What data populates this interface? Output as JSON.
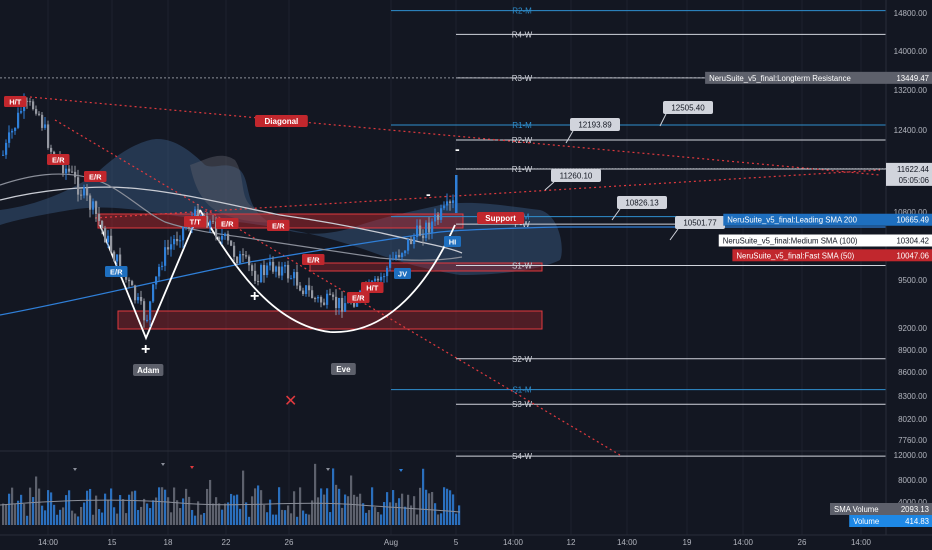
{
  "chart_data": {
    "type": "candlestick",
    "y_ticks": [
      "14800.00",
      "14000.00",
      "13200.00",
      "12400.00",
      "11600.00",
      "10800.00",
      "10000.00",
      "9500.00",
      "9200.00",
      "8900.00",
      "8600.00",
      "8300.00",
      "8020.00",
      "7760.00"
    ],
    "x_ticks": [
      "14:00",
      "15",
      "18",
      "22",
      "26",
      "Aug",
      "5",
      "14:00",
      "12",
      "14:00",
      "19",
      "14:00",
      "26",
      "14:00"
    ],
    "vol_ticks": [
      "12000.00",
      "8000.00",
      "4000.00"
    ],
    "pivots": [
      {
        "label": "R2-M",
        "price": 14850,
        "color": "#2f8fcf"
      },
      {
        "label": "R4-W",
        "price": 14350,
        "color": "#d1d4dc"
      },
      {
        "label": "R3-W",
        "price": 13450,
        "color": "#d1d4dc"
      },
      {
        "label": "R1-M",
        "price": 12500,
        "color": "#2f8fcf"
      },
      {
        "label": "R2-W",
        "price": 12200,
        "color": "#d1d4dc"
      },
      {
        "label": "R1-W",
        "price": 11620,
        "color": "#d1d4dc"
      },
      {
        "label": "P-M",
        "price": 10720,
        "color": "#2f8fcf"
      },
      {
        "label": "P-W",
        "price": 10590,
        "color": "#d1d4dc"
      },
      {
        "label": "S1-W",
        "price": 9830,
        "color": "#d1d4dc"
      },
      {
        "label": "S2-W",
        "price": 8780,
        "color": "#d1d4dc"
      },
      {
        "label": "S1-M",
        "price": 8380,
        "color": "#2f8fcf"
      },
      {
        "label": "S3-W",
        "price": 8200,
        "color": "#d1d4dc"
      },
      {
        "label": "S4-W",
        "price": 7560,
        "color": "#d1d4dc"
      }
    ],
    "callouts": [
      "12505.40",
      "12193.89",
      "11260.10",
      "10826.13",
      "10501.77"
    ],
    "right_labels": [
      {
        "text": "NeruSuite_v5_final:Longterm Resistance",
        "value": "13449.47",
        "bg": "#5d606b",
        "fg": "#ffffff",
        "price": 13449.47
      },
      {
        "text": "NeruSuite_v5_final:Leading SMA 200",
        "value": "10665.49",
        "bg": "#1e6fbf",
        "fg": "#ffffff",
        "price": 10665.49
      },
      {
        "text": "NeruSuite_v5_final:Medium SMA (100)",
        "value": "10304.42",
        "bg": "#ffffff",
        "fg": "#131722",
        "price": 10304.42
      },
      {
        "text": "NeruSuite_v5_final:Fast SMA (50)",
        "value": "10047.06",
        "bg": "#c1272d",
        "fg": "#ffffff",
        "price": 10047.06
      }
    ],
    "last_price": {
      "value": "11622.44",
      "countdown": "05:05:06",
      "price": 11622.44
    },
    "volume_labels": [
      {
        "text": "SMA Volume",
        "value": "2093.13",
        "bg": "#5d606b"
      },
      {
        "text": "Volume",
        "value": "414.83",
        "bg": "#1e88e5"
      }
    ],
    "annotations": [
      "Diagonal",
      "Support",
      "Adam",
      "Eve"
    ],
    "signals": [
      "H/T",
      "E/R",
      "E/R",
      "T/T",
      "E/R",
      "E/R",
      "E/R",
      "E/R",
      "H/T",
      "E/R",
      "HI",
      "JV"
    ]
  }
}
